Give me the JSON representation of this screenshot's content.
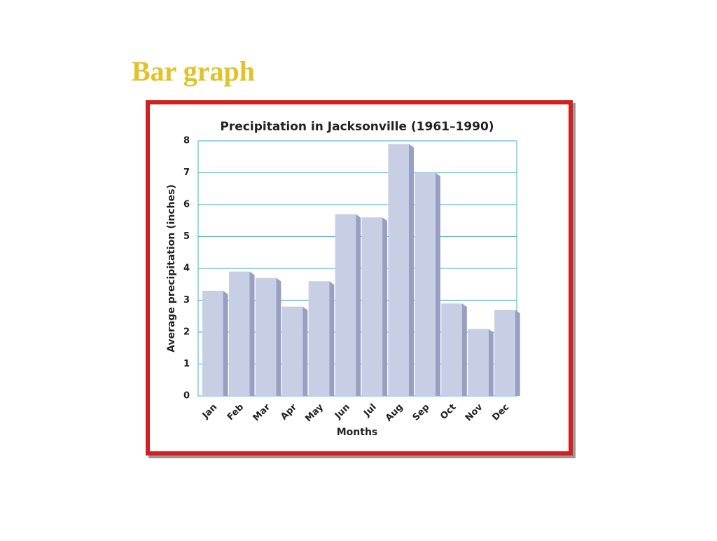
{
  "slide_title": "Bar graph",
  "chart_data": {
    "type": "bar",
    "title": "Precipitation in Jacksonville (1961–1990)",
    "x_label": "Months",
    "y_label": "Average precipitation (inches)",
    "categories": [
      "Jan",
      "Feb",
      "Mar",
      "Apr",
      "May",
      "Jun",
      "Jul",
      "Aug",
      "Sep",
      "Oct",
      "Nov",
      "Dec"
    ],
    "values": [
      3.3,
      3.9,
      3.7,
      2.8,
      3.6,
      5.7,
      5.6,
      7.9,
      7.0,
      2.9,
      2.1,
      2.7
    ],
    "color": "#c8cfe4",
    "ylim": [
      0,
      8
    ],
    "yticks": [
      0,
      1,
      2,
      3,
      4,
      5,
      6,
      7,
      8
    ],
    "grid": true
  }
}
